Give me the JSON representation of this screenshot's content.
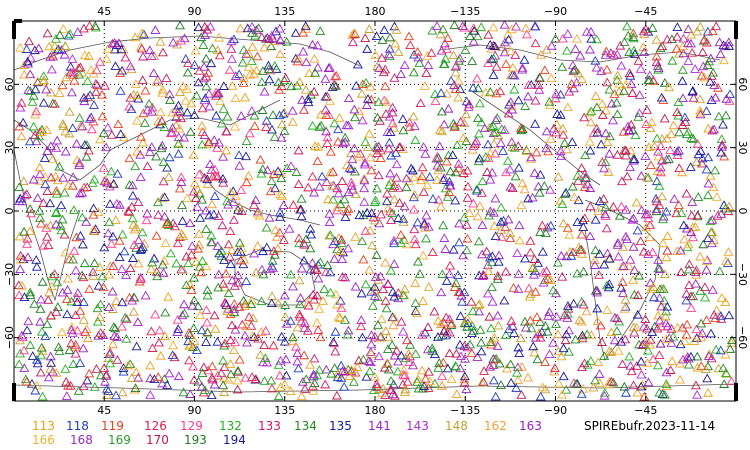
{
  "map": {
    "title": "SPIREbufr.2023-11-14",
    "top_lon_labels": [
      "45",
      "90",
      "135",
      "180",
      "−135",
      "−90",
      "−45"
    ],
    "bottom_lon_labels": [
      "45",
      "90",
      "135",
      "180",
      "−135",
      "−90",
      "−45"
    ],
    "lat_labels": [
      "60",
      "30",
      "0",
      "−30",
      "−60"
    ],
    "projection": "cylindrical-equidistant",
    "grid": "dotted",
    "marker_shape": "triangle",
    "legend": [
      {
        "label": "113",
        "color": "#e8a317"
      },
      {
        "label": "118",
        "color": "#1f3fbf"
      },
      {
        "label": "119",
        "color": "#e8401c"
      },
      {
        "label": "126",
        "color": "#e0204a"
      },
      {
        "label": "129",
        "color": "#ff3c8c"
      },
      {
        "label": "132",
        "color": "#22b022"
      },
      {
        "label": "133",
        "color": "#c8186e"
      },
      {
        "label": "134",
        "color": "#1e8c1e"
      },
      {
        "label": "135",
        "color": "#1018a0"
      },
      {
        "label": "141",
        "color": "#a020d0"
      },
      {
        "label": "143",
        "color": "#b02ad8"
      },
      {
        "label": "148",
        "color": "#c8a030"
      },
      {
        "label": "162",
        "color": "#f0a030"
      },
      {
        "label": "163",
        "color": "#9a1ec0"
      },
      {
        "label": "166",
        "color": "#f0b030"
      },
      {
        "label": "168",
        "color": "#9a28b8"
      },
      {
        "label": "169",
        "color": "#2a9a2a"
      },
      {
        "label": "170",
        "color": "#c01848"
      },
      {
        "label": "193",
        "color": "#1e7a1e"
      },
      {
        "label": "194",
        "color": "#1a1a8c"
      }
    ]
  }
}
